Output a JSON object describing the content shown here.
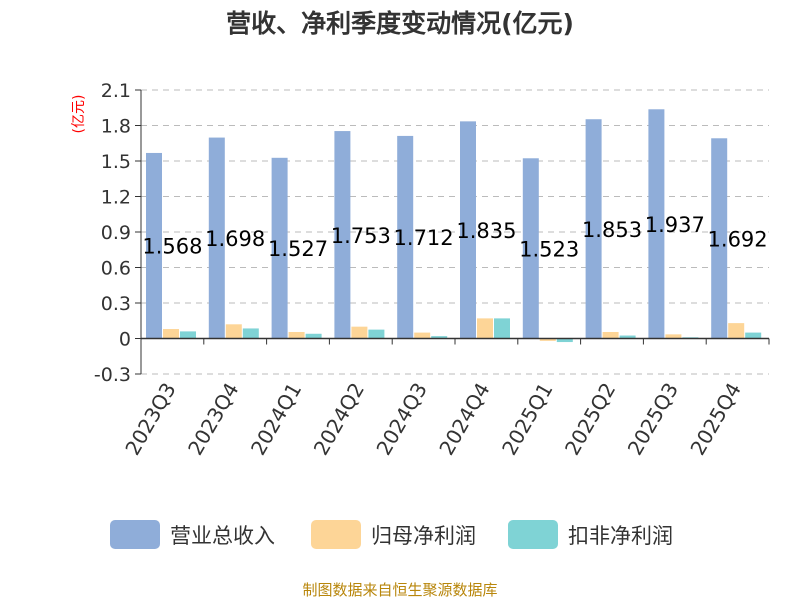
{
  "colors": {
    "revenue": "#8fadd9",
    "parent_net": "#fdd597",
    "nonrecurring_net": "#7fd3d5",
    "axis": "#333333",
    "grid": "#bbbbbb",
    "unit": "#ff0000",
    "source": "#b8860b"
  },
  "chart_data": {
    "type": "bar",
    "title": "营收、净利季度变动情况(亿元)",
    "ylabel": "(亿元)",
    "ylim": [
      -0.3,
      2.1
    ],
    "yticks": [
      "2.1",
      "1.8",
      "1.5",
      "1.2",
      "0.9",
      "0.6",
      "0.3",
      "0",
      "-0.3"
    ],
    "ytick_values": [
      2.1,
      1.8,
      1.5,
      1.2,
      0.9,
      0.6,
      0.3,
      0,
      -0.3
    ],
    "grid": true,
    "legend_position": "bottom",
    "categories": [
      "2023Q3",
      "2023Q4",
      "2024Q1",
      "2024Q2",
      "2024Q3",
      "2024Q4",
      "2025Q1",
      "2025Q2",
      "2025Q3",
      "2025Q4"
    ],
    "series": [
      {
        "name": "营业总收入",
        "values": [
          1.568,
          1.698,
          1.527,
          1.753,
          1.712,
          1.835,
          1.523,
          1.853,
          1.937,
          1.692
        ],
        "labels": [
          "1.568",
          "1.698",
          "1.527",
          "1.753",
          "1.712",
          "1.835",
          "1.523",
          "1.853",
          "1.937",
          "1.692"
        ]
      },
      {
        "name": "归母净利润",
        "values": [
          0.08,
          0.12,
          0.055,
          0.1,
          0.05,
          0.17,
          -0.02,
          0.055,
          0.035,
          0.13
        ]
      },
      {
        "name": "扣非净利润",
        "values": [
          0.06,
          0.085,
          0.04,
          0.075,
          0.02,
          0.17,
          -0.03,
          0.025,
          0.01,
          0.05
        ]
      }
    ],
    "source": "制图数据来自恒生聚源数据库"
  }
}
